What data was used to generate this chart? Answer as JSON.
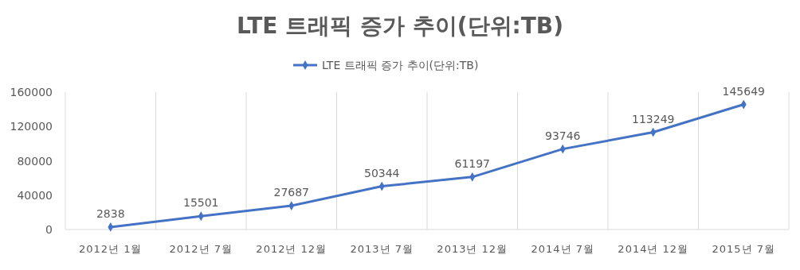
{
  "chart_data": {
    "type": "line",
    "title": "LTE 트래픽 증가 추이(단위:TB)",
    "categories": [
      "2012년 1월",
      "2012년 7월",
      "2012년 12월",
      "2013년 7월",
      "2013년 12월",
      "2014년 7월",
      "2014년 12월",
      "2015년 7월"
    ],
    "series": [
      {
        "name": "LTE 트래픽 증가 추이(단위:TB)",
        "color": "#4472c4",
        "values": [
          2838,
          15501,
          27687,
          50344,
          61197,
          93746,
          113249,
          145649
        ]
      }
    ],
    "ylim": [
      0,
      160000
    ],
    "yticks": [
      0,
      40000,
      80000,
      120000,
      160000
    ],
    "grid": "x",
    "legend": "top",
    "marker": "diamond",
    "line_style": "solid",
    "data_labels": true
  }
}
